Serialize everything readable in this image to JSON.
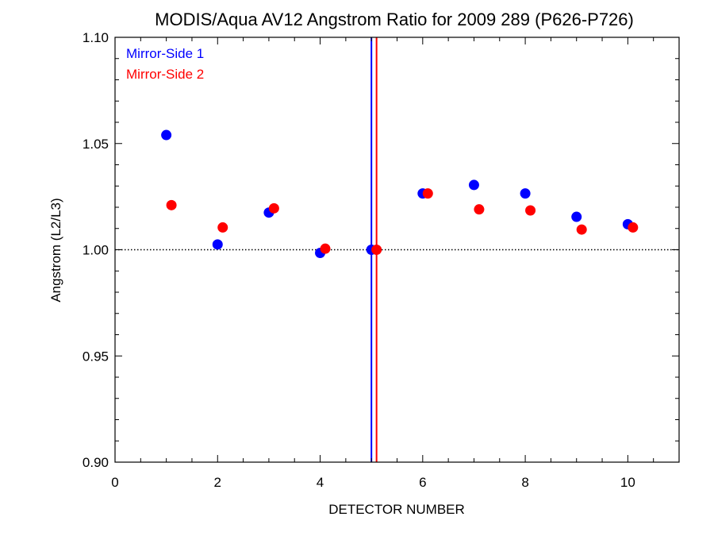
{
  "chart_data": {
    "type": "scatter",
    "title": "MODIS/Aqua AV12 Angstrom Ratio for 2009 289 (P626-P726)",
    "xlabel": "DETECTOR NUMBER",
    "ylabel": "Angstrom (L2/L3)",
    "xlim": [
      0,
      11
    ],
    "ylim": [
      0.9,
      1.1
    ],
    "x_ticks": [
      0,
      2,
      4,
      6,
      8,
      10
    ],
    "x_tick_labels": [
      "0",
      "2",
      "4",
      "6",
      "8",
      "10"
    ],
    "y_ticks": [
      0.9,
      0.95,
      1.0,
      1.05,
      1.1
    ],
    "y_tick_labels": [
      "0.90",
      "0.95",
      "1.00",
      "1.05",
      "1.10"
    ],
    "minor_x_step": 0.5,
    "minor_y_step": 0.01,
    "grid": false,
    "reference_hline": {
      "y": 1.0,
      "style": "dotted",
      "color": "#000000"
    },
    "reference_vlines": [
      {
        "x": 5.0,
        "color": "#0000ff"
      },
      {
        "x": 5.1,
        "color": "#ff0000"
      }
    ],
    "legend_position": "top-left",
    "series": [
      {
        "name": "Mirror-Side 1",
        "color": "#0000ff",
        "x": [
          1,
          2,
          3,
          4,
          5,
          6,
          7,
          8,
          9,
          10
        ],
        "y": [
          1.054,
          1.0025,
          1.0175,
          0.9985,
          1.0,
          1.0265,
          1.0305,
          1.0265,
          1.0155,
          1.012
        ]
      },
      {
        "name": "Mirror-Side 2",
        "color": "#ff0000",
        "x": [
          1.1,
          2.1,
          3.1,
          4.1,
          5.1,
          6.1,
          7.1,
          8.1,
          9.1,
          10.1
        ],
        "y": [
          1.021,
          1.0105,
          1.0195,
          1.0005,
          1.0,
          1.0265,
          1.019,
          1.0185,
          1.0095,
          1.0105
        ]
      }
    ]
  }
}
